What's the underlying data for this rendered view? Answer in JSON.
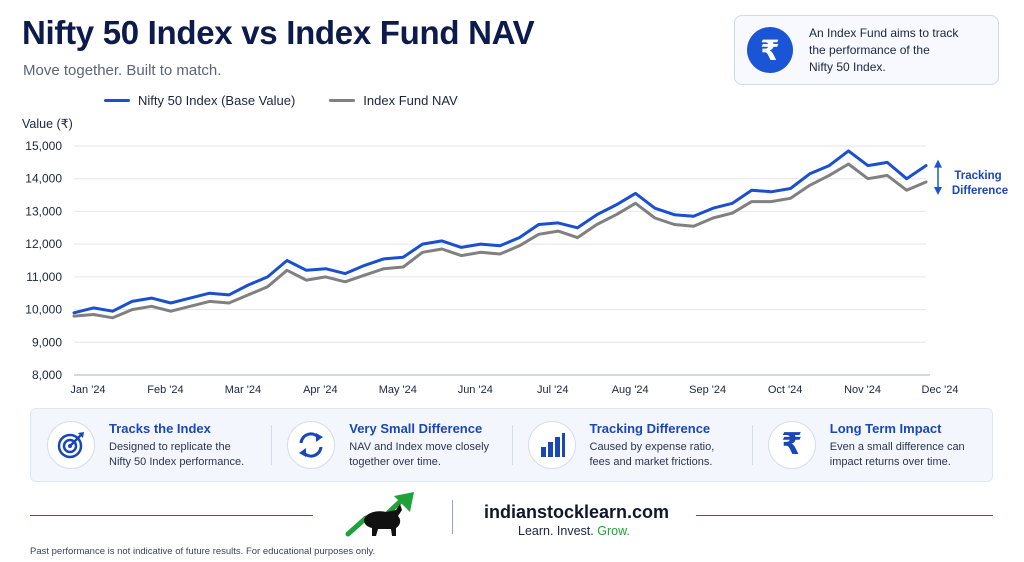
{
  "header": {
    "title": "Nifty 50 Index vs Index Fund NAV",
    "subtitle": "Move together. Built to match."
  },
  "info_box": {
    "icon": "rupee-icon",
    "text_line1": "An Index Fund aims to track",
    "text_line2": "the performance of the",
    "text_line3": "Nifty 50 Index."
  },
  "colors": {
    "index": "#1a4fd0",
    "nav": "#808080",
    "accent": "#1a55d6",
    "green": "#20a23a"
  },
  "chart_data": {
    "type": "line",
    "ylabel": "Value (₹)",
    "ylim": [
      8000,
      15000
    ],
    "yticks": [
      "8,000",
      "9,000",
      "10,000",
      "11,000",
      "12,000",
      "13,000",
      "14,000",
      "15,000"
    ],
    "ytick_values": [
      8000,
      9000,
      10000,
      11000,
      12000,
      13000,
      14000,
      15000
    ],
    "categories": [
      "Jan '24",
      "Feb '24",
      "Mar '24",
      "Apr '24",
      "May '24",
      "Jun '24",
      "Jul '24",
      "Aug '24",
      "Sep '24",
      "Oct '24",
      "Nov '24",
      "Dec '24"
    ],
    "x": [
      0,
      0.25,
      0.5,
      0.75,
      1,
      1.25,
      1.5,
      1.75,
      2,
      2.25,
      2.5,
      2.75,
      3,
      3.25,
      3.5,
      3.75,
      4,
      4.25,
      4.5,
      4.75,
      5,
      5.25,
      5.5,
      5.75,
      6,
      6.25,
      6.5,
      6.75,
      7,
      7.25,
      7.5,
      7.75,
      8,
      8.25,
      8.5,
      8.75,
      9,
      9.25,
      9.5,
      9.75,
      10,
      10.25,
      10.5,
      10.75,
      11
    ],
    "series": [
      {
        "name": "Nifty 50 Index (Base Value)",
        "values": [
          9900,
          10050,
          9950,
          10250,
          10350,
          10200,
          10350,
          10500,
          10450,
          10750,
          11000,
          11500,
          11200,
          11250,
          11100,
          11350,
          11550,
          11600,
          12000,
          12100,
          11900,
          12000,
          11950,
          12200,
          12600,
          12650,
          12500,
          12900,
          13200,
          13550,
          13100,
          12900,
          12850,
          13100,
          13250,
          13650,
          13600,
          13700,
          14150,
          14400,
          14850,
          14400,
          14500,
          14000,
          14400
        ]
      },
      {
        "name": "Index Fund NAV",
        "values": [
          9800,
          9850,
          9750,
          10000,
          10100,
          9950,
          10100,
          10250,
          10200,
          10450,
          10700,
          11200,
          10900,
          11000,
          10850,
          11050,
          11250,
          11300,
          11750,
          11850,
          11650,
          11750,
          11700,
          11950,
          12300,
          12400,
          12200,
          12600,
          12900,
          13250,
          12800,
          12600,
          12550,
          12800,
          12950,
          13300,
          13300,
          13400,
          13800,
          14100,
          14450,
          14000,
          14100,
          13650,
          13900
        ]
      }
    ],
    "annotation": {
      "line1": "Tracking",
      "line2": "Difference"
    },
    "grid": true,
    "legend": "top-left"
  },
  "features": [
    {
      "icon": "target-icon",
      "title": "Tracks the Index",
      "desc1": "Designed to replicate the",
      "desc2": "Nifty 50 Index performance."
    },
    {
      "icon": "sync-icon",
      "title": "Very Small Difference",
      "desc1": "NAV and Index move closely",
      "desc2": "together over time."
    },
    {
      "icon": "bar-chart-icon",
      "title": "Tracking Difference",
      "desc1": "Caused by expense ratio,",
      "desc2": "fees and market frictions."
    },
    {
      "icon": "rupee-icon",
      "title": "Long Term Impact",
      "desc1": "Even a small difference can",
      "desc2": "impact returns over time."
    }
  ],
  "footer": {
    "brand": "indianstocklearn.com",
    "tag_part1": "Learn. Invest.",
    "tag_part2": "Grow.",
    "disclaimer": "Past performance is not indicative of future results. For educational purposes only."
  }
}
